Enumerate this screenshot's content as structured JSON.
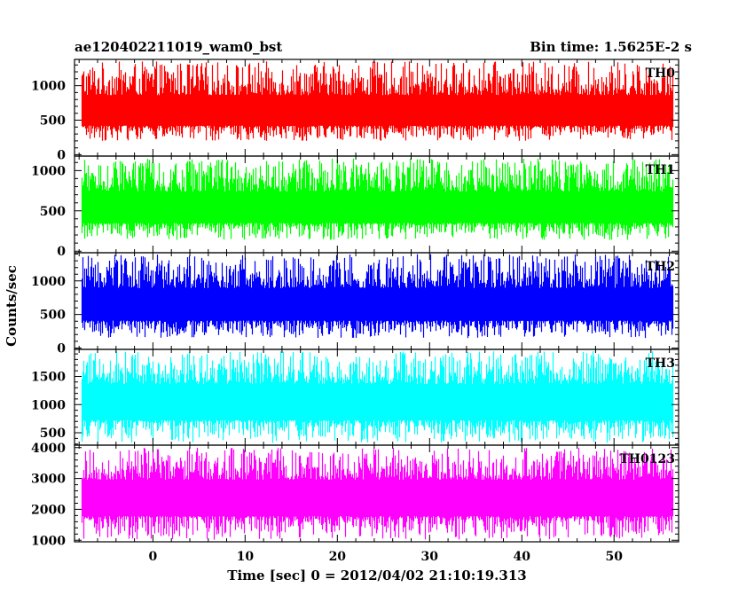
{
  "chart_data": {
    "type": "line",
    "title": "ae120402211019_wam0_bst",
    "subtitle": "Bin time: 1.5625E-2 s",
    "xlabel": "Time [sec] 0 = 2012/04/02 21:10:19.313",
    "ylabel": "Counts/sec",
    "xlim": [
      -8.5,
      57
    ],
    "x_range": [
      -7.7,
      56.3
    ],
    "bin_time": 0.015625,
    "x_ticks": [
      0,
      10,
      20,
      30,
      40,
      50
    ],
    "grid": false,
    "panels": [
      {
        "name": "TH0",
        "color": "#ff0000",
        "ylim": [
          -20,
          1380
        ],
        "y_ticks": [
          0,
          500,
          1000
        ],
        "mean": 600,
        "min": 200,
        "max": 1350
      },
      {
        "name": "TH1",
        "color": "#00ff00",
        "ylim": [
          -20,
          1180
        ],
        "y_ticks": [
          0,
          500,
          1000
        ],
        "mean": 520,
        "min": 140,
        "max": 1150
      },
      {
        "name": "TH2",
        "color": "#0000ff",
        "ylim": [
          -20,
          1420
        ],
        "y_ticks": [
          0,
          500,
          1000
        ],
        "mean": 620,
        "min": 150,
        "max": 1400
      },
      {
        "name": "TH3",
        "color": "#00ffff",
        "ylim": [
          280,
          1980
        ],
        "y_ticks": [
          500,
          1000,
          1500
        ],
        "mean": 1050,
        "min": 320,
        "max": 1950
      },
      {
        "name": "TH0123",
        "color": "#ff00ff",
        "ylim": [
          950,
          4080
        ],
        "y_ticks": [
          1000,
          2000,
          3000,
          4000
        ],
        "mean": 2400,
        "min": 1020,
        "max": 4000
      }
    ]
  }
}
